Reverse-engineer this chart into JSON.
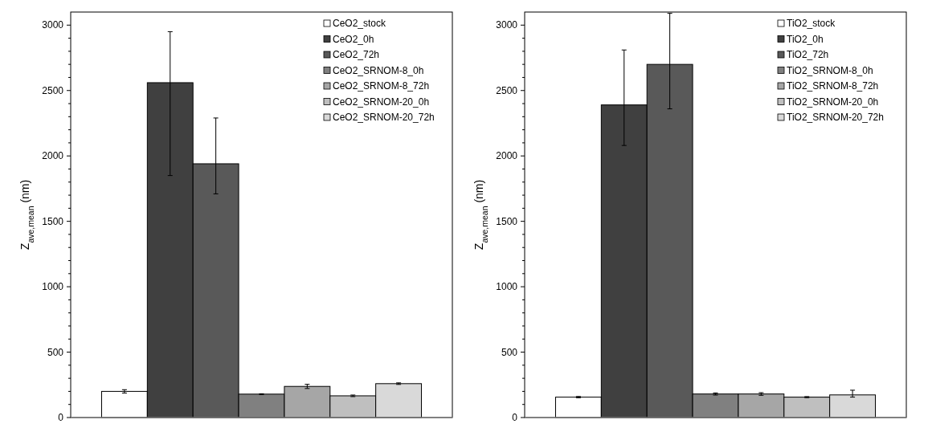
{
  "chart_data": [
    {
      "type": "bar",
      "ylabel": "Z$_{ave,mean}$ (nm)",
      "categories": [
        null
      ],
      "ylim": [
        0,
        3100
      ],
      "yticks": [
        0,
        {
          "value": 100,
          "label": null
        },
        {
          "value": 200,
          "label": null
        },
        {
          "value": 300,
          "label": null
        },
        {
          "value": 400,
          "label": null
        },
        500,
        {
          "value": 600,
          "label": null
        },
        {
          "value": 700,
          "label": null
        },
        {
          "value": 800,
          "label": null
        },
        {
          "value": 900,
          "label": null
        },
        1000,
        {
          "value": 1100,
          "label": null
        },
        {
          "value": 1200,
          "label": null
        },
        {
          "value": 1300,
          "label": null
        },
        {
          "value": 1400,
          "label": null
        },
        1500,
        {
          "value": 1600,
          "label": null
        },
        {
          "value": 1700,
          "label": null
        },
        {
          "value": 1800,
          "label": null
        },
        {
          "value": 1900,
          "label": null
        },
        2000,
        {
          "value": 2100,
          "label": null
        },
        {
          "value": 2200,
          "label": null
        },
        {
          "value": 2300,
          "label": null
        },
        {
          "value": 2400,
          "label": null
        },
        2500,
        {
          "value": 2600,
          "label": null
        },
        {
          "value": 2700,
          "label": null
        },
        {
          "value": 2800,
          "label": null
        },
        {
          "value": 2900,
          "label": null
        },
        3000
      ],
      "legend": "top right",
      "tick_labels": "y",
      "series": [
        {
          "name": "CeO2_stock",
          "color": "#ffffff",
          "values": [
            200
          ],
          "errors": [
            13
          ]
        },
        {
          "name": "CeO2_0h",
          "color": "#404040",
          "values": [
            2560
          ],
          "errors": [
            [
              1850,
              2950
            ]
          ]
        },
        {
          "name": "CeO2_72h",
          "color": "#595959",
          "values": [
            1940
          ],
          "errors": [
            [
              1710,
              2290
            ]
          ]
        },
        {
          "name": "CeO2_SRNOM-8_0h",
          "color": "#808080",
          "values": [
            179
          ],
          "errors": [
            3
          ]
        },
        {
          "name": "CeO2_SRNOM-8_72h",
          "color": "#a6a6a6",
          "values": [
            238
          ],
          "errors": [
            16
          ]
        },
        {
          "name": "CeO2_SRNOM-20_0h",
          "color": "#bfbfbf",
          "values": [
            166
          ],
          "errors": [
            6
          ]
        },
        {
          "name": "CeO2_SRNOM-20_72h",
          "color": "#d9d9d9",
          "values": [
            259
          ],
          "errors": [
            6
          ]
        }
      ]
    },
    {
      "type": "bar",
      "ylabel": "Z$_{ave,mean}$ (nm)",
      "categories": [
        null
      ],
      "ylim": [
        0,
        3100
      ],
      "yticks": [
        0,
        {
          "value": 100,
          "label": null
        },
        {
          "value": 200,
          "label": null
        },
        {
          "value": 300,
          "label": null
        },
        {
          "value": 400,
          "label": null
        },
        500,
        {
          "value": 600,
          "label": null
        },
        {
          "value": 700,
          "label": null
        },
        {
          "value": 800,
          "label": null
        },
        {
          "value": 900,
          "label": null
        },
        1000,
        {
          "value": 1100,
          "label": null
        },
        {
          "value": 1200,
          "label": null
        },
        {
          "value": 1300,
          "label": null
        },
        {
          "value": 1400,
          "label": null
        },
        1500,
        {
          "value": 1600,
          "label": null
        },
        {
          "value": 1700,
          "label": null
        },
        {
          "value": 1800,
          "label": null
        },
        {
          "value": 1900,
          "label": null
        },
        2000,
        {
          "value": 2100,
          "label": null
        },
        {
          "value": 2200,
          "label": null
        },
        {
          "value": 2300,
          "label": null
        },
        {
          "value": 2400,
          "label": null
        },
        2500,
        {
          "value": 2600,
          "label": null
        },
        {
          "value": 2700,
          "label": null
        },
        {
          "value": 2800,
          "label": null
        },
        {
          "value": 2900,
          "label": null
        },
        3000
      ],
      "legend": "top right",
      "tick_labels": "y",
      "series": [
        {
          "name": "TiO2_stock",
          "color": "#ffffff",
          "values": [
            156
          ],
          "errors": [
            5
          ]
        },
        {
          "name": "TiO2_0h",
          "color": "#404040",
          "values": [
            2390
          ],
          "errors": [
            [
              2080,
              2810
            ]
          ]
        },
        {
          "name": "TiO2_72h",
          "color": "#595959",
          "values": [
            2700
          ],
          "errors": [
            [
              2360,
              3090
            ]
          ]
        },
        {
          "name": "TiO2_SRNOM-8_0h",
          "color": "#808080",
          "values": [
            180
          ],
          "errors": [
            8
          ]
        },
        {
          "name": "TiO2_SRNOM-8_72h",
          "color": "#a6a6a6",
          "values": [
            180
          ],
          "errors": [
            10
          ]
        },
        {
          "name": "TiO2_SRNOM-20_0h",
          "color": "#bfbfbf",
          "values": [
            156
          ],
          "errors": [
            4
          ]
        },
        {
          "name": "TiO2_SRNOM-20_72h",
          "color": "#d9d9d9",
          "values": [
            173
          ],
          "errors": [
            [
              156,
              209
            ]
          ]
        }
      ]
    }
  ]
}
